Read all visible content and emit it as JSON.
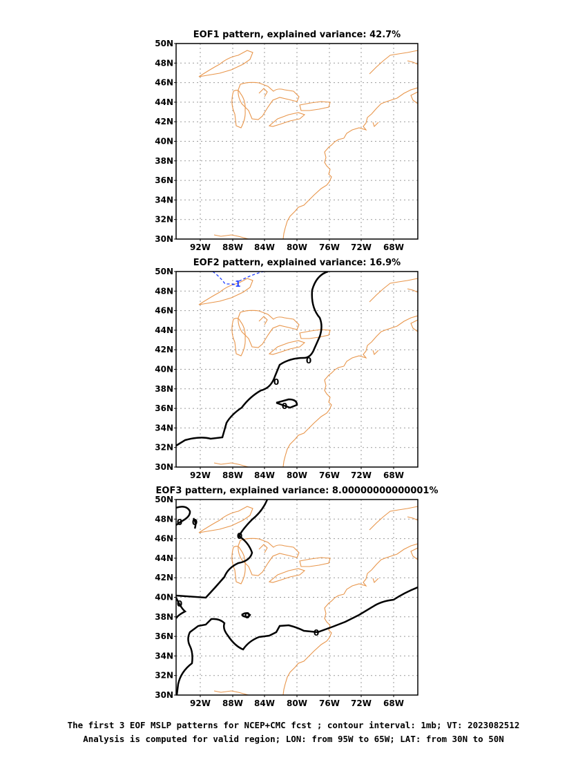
{
  "panels": [
    {
      "title": "EOF1 pattern, explained variance: 42.7%"
    },
    {
      "title": "EOF2 pattern, explained variance: 16.9%",
      "contour_labels": [
        "-1",
        "0",
        "0",
        "0"
      ]
    },
    {
      "title": "EOF3 pattern, explained variance: 8.00000000000001%",
      "contour_labels": [
        "0",
        "0",
        "0",
        "0",
        "0",
        "0"
      ]
    }
  ],
  "lat_ticks": [
    "50N",
    "48N",
    "46N",
    "44N",
    "42N",
    "40N",
    "38N",
    "36N",
    "34N",
    "32N",
    "30N"
  ],
  "lon_ticks": [
    "92W",
    "88W",
    "84W",
    "80W",
    "76W",
    "72W",
    "68W"
  ],
  "caption": {
    "line1": "The first 3 EOF MSLP patterns for NCEP+CMC fcst ; contour interval: 1mb; VT: 2023082512",
    "line2": "Analysis is computed for valid region; LON: from 95W to 65W; LAT: from 30N to 50N"
  },
  "colors": {
    "coastline": "#e8954a",
    "positive_contour": "#000000",
    "negative_contour": "#1f3fff",
    "grid": "#999999"
  }
}
